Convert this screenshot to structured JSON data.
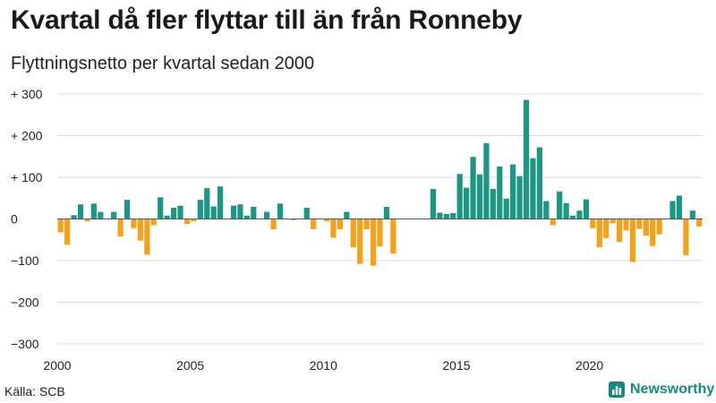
{
  "title": "Kvartal då fler flyttar till än från Ronneby",
  "subtitle": "Flyttningsnetto per kvartal sedan 2000",
  "source": "Källa: SCB",
  "brand": {
    "name": "Newsworthy",
    "icon": "bar-chart-icon"
  },
  "colors": {
    "positive": "#1b9783",
    "negative": "#f5a11a",
    "grid": "#d8d8d8",
    "zero": "#555555",
    "brand": "#138a7d"
  },
  "chart_data": {
    "type": "bar",
    "x_start": "2000 Q1",
    "x_tick_labels": [
      "2000",
      "2005",
      "2010",
      "2015",
      "2020"
    ],
    "x_tick_years": [
      2000,
      2005,
      2010,
      2015,
      2020
    ],
    "y_ticks": [
      300,
      200,
      100,
      0,
      -100,
      -200,
      -300
    ],
    "y_tick_labels": [
      "+ 300",
      "+ 200",
      "+ 100",
      "0",
      "−100",
      "−200",
      "−300"
    ],
    "ylim": [
      -300,
      300
    ],
    "grid": true,
    "values": [
      -32,
      -62,
      9,
      35,
      -6,
      37,
      17,
      0,
      17,
      -42,
      46,
      -22,
      -52,
      -86,
      -15,
      52,
      8,
      27,
      32,
      -12,
      -6,
      46,
      74,
      30,
      78,
      0,
      32,
      35,
      8,
      29,
      0,
      17,
      -25,
      37,
      0,
      -3,
      0,
      27,
      -25,
      0,
      -6,
      -45,
      -25,
      17,
      -68,
      -108,
      -25,
      -112,
      -66,
      29,
      -83,
      0,
      0,
      0,
      0,
      0,
      72,
      15,
      12,
      14,
      108,
      75,
      149,
      107,
      182,
      72,
      126,
      49,
      131,
      103,
      286,
      146,
      172,
      43,
      -15,
      66,
      38,
      8,
      20,
      47,
      -22,
      -68,
      -46,
      -10,
      -55,
      -27,
      -103,
      -24,
      -40,
      -65,
      -37,
      0,
      43,
      56,
      -87,
      20,
      -18
    ]
  }
}
